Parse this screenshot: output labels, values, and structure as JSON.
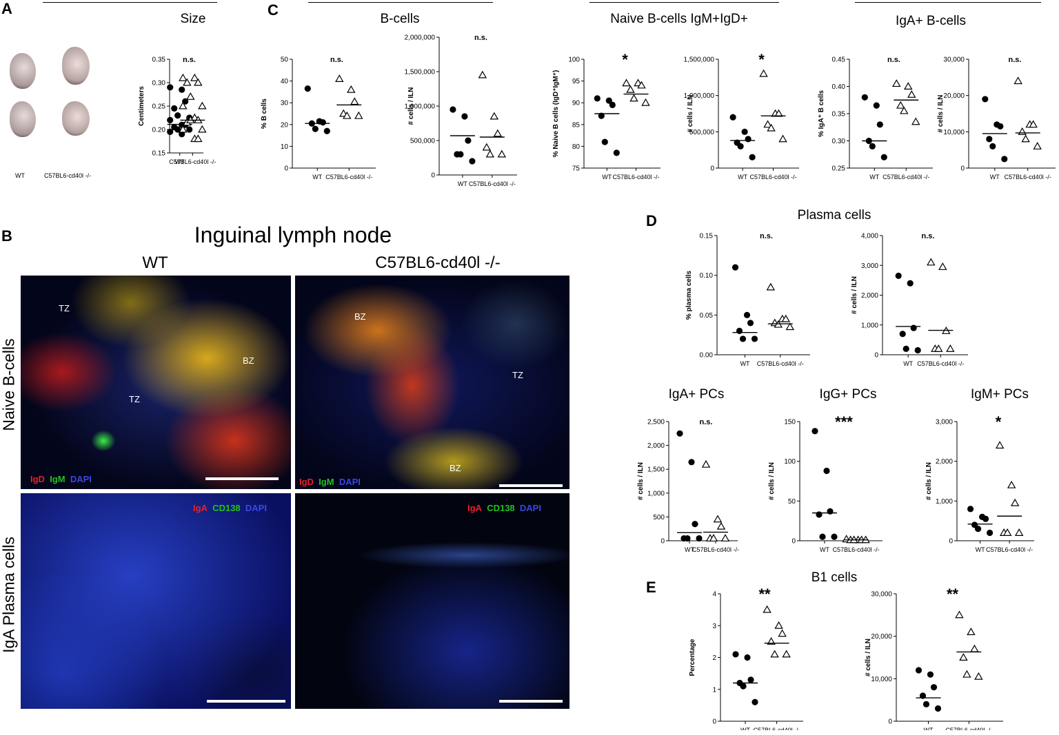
{
  "panels": {
    "A": {
      "letter": "A",
      "title": "Size",
      "thumb_labels": [
        "WT",
        "C57BL6-cd40l -/-"
      ],
      "chart": {
        "type": "scatter",
        "title": "n.s.",
        "ylabel": "Centimeters",
        "yticks": [
          "0.15",
          "0.20",
          "0.25",
          "0.30",
          "0.35"
        ],
        "ylim": [
          0.15,
          0.35
        ],
        "categories": [
          "WT",
          "C57BL6-cd40l -/-"
        ],
        "series": [
          {
            "values": [
              0.29,
              0.285,
              0.26,
              0.245,
              0.23,
              0.225,
              0.22,
              0.21,
              0.21,
              0.205,
              0.2,
              0.2,
              0.195,
              0.19
            ],
            "mean": 0.211
          },
          {
            "values": [
              0.31,
              0.31,
              0.3,
              0.3,
              0.27,
              0.25,
              0.25,
              0.225,
              0.22,
              0.215,
              0.22,
              0.2,
              0.2,
              0.18,
              0.18
            ],
            "mean": 0.22
          }
        ]
      }
    },
    "B": {
      "letter": "B",
      "title": "Inguinal lymph node",
      "col_wt": "WT",
      "col_ko": "C57BL6-cd40l -/-",
      "row_naive": "Naive B-cells",
      "row_iga": "IgA Plasma cells",
      "zones": [
        "TZ",
        "TZ",
        "BZ",
        "BZ",
        "TZ",
        "BZ"
      ],
      "stain_top": [
        "IgD",
        "IgM",
        "DAPI"
      ],
      "stain_bottom": [
        "IgA",
        "CD138",
        "DAPI"
      ],
      "colors": {
        "red": "#e8202a",
        "green": "#22c21e",
        "blue": "#2f3bd8"
      }
    },
    "C": {
      "letter": "C",
      "titles": [
        "B-cells",
        "Naive B-cells IgM+IgD+",
        "IgA+ B-cells"
      ],
      "charts": [
        {
          "type": "scatter",
          "title": "n.s.",
          "ylabel": "% B cells",
          "yticks": [
            "0",
            "10",
            "20",
            "30",
            "40",
            "50"
          ],
          "ylim": [
            0,
            50
          ],
          "categories": [
            "WT",
            "C57BL6-cd40l -/-"
          ],
          "series": [
            {
              "values": [
                36.5,
                21.5,
                21,
                20.5,
                18,
                17
              ],
              "mean": 20.5
            },
            {
              "values": [
                41,
                36,
                30.5,
                25,
                24,
                24
              ],
              "mean": 29
            }
          ]
        },
        {
          "type": "scatter",
          "title": "n.s.",
          "ylabel": "# cells / ILN",
          "yticks": [
            "0",
            "500,000",
            "1,000,000",
            "1,500,000",
            "2,000,000"
          ],
          "ylim": [
            0,
            2000000
          ],
          "categories": [
            "WT",
            "C57BL6-cd40l -/-"
          ],
          "series": [
            {
              "values": [
                950000,
                850000,
                500000,
                300000,
                300000,
                200000
              ],
              "mean": 570000
            },
            {
              "values": [
                1450000,
                850000,
                600000,
                400000,
                300000,
                300000
              ],
              "mean": 550000
            }
          ]
        },
        {
          "type": "scatter",
          "title": "*",
          "ylabel": "% Naive B cells (IgD⁺IgM⁺)",
          "yticks": [
            "75",
            "80",
            "85",
            "90",
            "95",
            "100"
          ],
          "ylim": [
            75,
            100
          ],
          "categories": [
            "WT",
            "C57BL6-cd40l -/-"
          ],
          "series": [
            {
              "values": [
                91,
                90.5,
                89.5,
                87,
                81,
                78.5
              ],
              "mean": 87.5
            },
            {
              "values": [
                94.5,
                94.5,
                94,
                93,
                91,
                90
              ],
              "mean": 92
            }
          ]
        },
        {
          "type": "scatter",
          "title": "*",
          "ylabel": "# cells / ILN",
          "yticks": [
            "0",
            "500,000",
            "1,000,000",
            "1,500,000"
          ],
          "ylim": [
            0,
            1500000
          ],
          "categories": [
            "WT",
            "C57BL6-cd40l -/-"
          ],
          "series": [
            {
              "values": [
                700000,
                500000,
                400000,
                350000,
                300000,
                150000
              ],
              "mean": 380000
            },
            {
              "values": [
                1300000,
                750000,
                750000,
                600000,
                550000,
                400000
              ],
              "mean": 720000
            }
          ]
        },
        {
          "type": "scatter",
          "title": "n.s.",
          "ylabel": "% IgA⁺ B cells",
          "yticks": [
            "0.25",
            "0.30",
            "0.35",
            "0.40",
            "0.45"
          ],
          "ylim": [
            0.25,
            0.45
          ],
          "categories": [
            "WT",
            "C57BL6-cd40l -/-"
          ],
          "series": [
            {
              "values": [
                0.38,
                0.365,
                0.33,
                0.3,
                0.29,
                0.27
              ],
              "mean": 0.3
            },
            {
              "values": [
                0.405,
                0.4,
                0.385,
                0.365,
                0.355,
                0.335
              ],
              "mean": 0.375
            }
          ]
        },
        {
          "type": "scatter",
          "title": "n.s.",
          "ylabel": "# cells / ILN",
          "yticks": [
            "0",
            "10,000",
            "20,000",
            "30,000"
          ],
          "ylim": [
            0,
            30000
          ],
          "categories": [
            "WT",
            "C57BL6-cd40l -/-"
          ],
          "series": [
            {
              "values": [
                19000,
                12000,
                11500,
                8000,
                6000,
                2500
              ],
              "mean": 9500
            },
            {
              "values": [
                24000,
                12000,
                12000,
                10000,
                8000,
                6000
              ],
              "mean": 9700
            }
          ]
        }
      ]
    },
    "D": {
      "letter": "D",
      "title": "Plasma cells",
      "sub_titles": [
        "IgA+ PCs",
        "IgG+ PCs",
        "IgM+ PCs"
      ],
      "charts": [
        {
          "type": "scatter",
          "title": "n.s.",
          "ylabel": "% plasma cells",
          "yticks": [
            "0.00",
            "0.05",
            "0.10",
            "0.15"
          ],
          "ylim": [
            0,
            0.15
          ],
          "categories": [
            "WT",
            "C57BL6-cd40l -/-"
          ],
          "series": [
            {
              "values": [
                0.11,
                0.05,
                0.04,
                0.03,
                0.02,
                0.02
              ],
              "mean": 0.028
            },
            {
              "values": [
                0.085,
                0.045,
                0.045,
                0.04,
                0.038,
                0.035
              ],
              "mean": 0.039
            }
          ]
        },
        {
          "type": "scatter",
          "title": "n.s.",
          "ylabel": "# cells / ILN",
          "yticks": [
            "0",
            "1,000",
            "2,000",
            "3,000",
            "4,000"
          ],
          "ylim": [
            0,
            4000
          ],
          "categories": [
            "WT",
            "C57BL6-cd40l -/-"
          ],
          "series": [
            {
              "values": [
                2650,
                2400,
                900,
                700,
                200,
                150
              ],
              "mean": 950
            },
            {
              "values": [
                3100,
                2950,
                800,
                200,
                200,
                200
              ],
              "mean": 820
            }
          ]
        },
        {
          "type": "scatter",
          "title": "n.s.",
          "ylabel": "# cells / ILN",
          "yticks": [
            "0",
            "500",
            "1,000",
            "1,500",
            "2,000",
            "2,500"
          ],
          "ylim": [
            0,
            2500
          ],
          "categories": [
            "WT",
            "C57BL6-cd40l -/-"
          ],
          "series": [
            {
              "values": [
                2250,
                1650,
                350,
                50,
                50,
                50
              ],
              "mean": 170
            },
            {
              "values": [
                1600,
                450,
                300,
                50,
                50,
                50
              ],
              "mean": 180
            }
          ]
        },
        {
          "type": "scatter",
          "title": "***",
          "ylabel": "# cells / ILN",
          "yticks": [
            "0",
            "50",
            "100",
            "150"
          ],
          "ylim": [
            0,
            150
          ],
          "categories": [
            "WT",
            "C57BL6-cd40l -/-"
          ],
          "series": [
            {
              "values": [
                138,
                88,
                37,
                33,
                5,
                5
              ],
              "mean": 35
            },
            {
              "values": [
                2,
                1,
                1,
                1,
                1,
                1
              ],
              "mean": 1
            }
          ]
        },
        {
          "type": "scatter",
          "title": "*",
          "ylabel": "# cells / ILN",
          "yticks": [
            "0",
            "1,000",
            "2,000",
            "3,000"
          ],
          "ylim": [
            0,
            3000
          ],
          "categories": [
            "WT",
            "C57BL6-cd40l -/-"
          ],
          "series": [
            {
              "values": [
                800,
                600,
                550,
                400,
                300,
                200
              ],
              "mean": 420
            },
            {
              "values": [
                2400,
                1400,
                950,
                200,
                200,
                200
              ],
              "mean": 620
            }
          ]
        }
      ]
    },
    "E": {
      "letter": "E",
      "title": "B1 cells",
      "charts": [
        {
          "type": "scatter",
          "title": "**",
          "ylabel": "Percentage",
          "yticks": [
            "0",
            "1",
            "2",
            "3",
            "4"
          ],
          "ylim": [
            0,
            4
          ],
          "categories": [
            "WT",
            "C57BL6-cd40l -/-"
          ],
          "series": [
            {
              "values": [
                2.1,
                2.0,
                1.3,
                1.2,
                1.1,
                0.6
              ],
              "mean": 1.2
            },
            {
              "values": [
                3.5,
                3.0,
                2.75,
                2.5,
                2.1,
                2.1
              ],
              "mean": 2.45
            }
          ]
        },
        {
          "type": "scatter",
          "title": "**",
          "ylabel": "# cells / ILN",
          "yticks": [
            "0",
            "10,000",
            "20,000",
            "30,000"
          ],
          "ylim": [
            0,
            30000
          ],
          "categories": [
            "WT",
            "C57BL6-cd40l -/-"
          ],
          "series": [
            {
              "values": [
                12000,
                11000,
                8000,
                6000,
                4000,
                3000
              ],
              "mean": 5500
            },
            {
              "values": [
                25000,
                21000,
                17000,
                15000,
                11000,
                10500
              ],
              "mean": 16300
            }
          ]
        }
      ]
    }
  }
}
